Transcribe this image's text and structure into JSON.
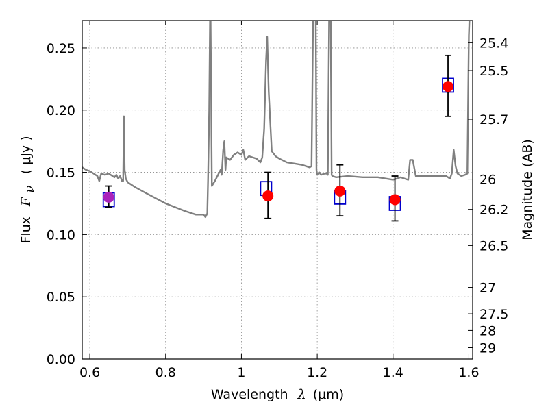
{
  "chart_data": {
    "type": "scatter",
    "xlabel": "Wavelength",
    "xlabel_symbol": "λ",
    "xlabel_unit": "(μm)",
    "ylabel": "Flux",
    "ylabel_symbol": "F",
    "ylabel_sub": "ν",
    "ylabel_unit": "( μJy )",
    "y2label": "Magnitude (AB)",
    "xlim": [
      0.58,
      1.61
    ],
    "ylim": [
      0.0,
      0.272
    ],
    "grid": true,
    "x_ticks": [
      {
        "value": 0.6,
        "label": "0.6"
      },
      {
        "value": 0.8,
        "label": "0.8"
      },
      {
        "value": 1.0,
        "label": "1"
      },
      {
        "value": 1.2,
        "label": "1.2"
      },
      {
        "value": 1.4,
        "label": "1.4"
      },
      {
        "value": 1.6,
        "label": "1.6"
      }
    ],
    "y_ticks": [
      {
        "value": 0.0,
        "label": "0.00"
      },
      {
        "value": 0.05,
        "label": "0.05"
      },
      {
        "value": 0.1,
        "label": "0.10"
      },
      {
        "value": 0.15,
        "label": "0.15"
      },
      {
        "value": 0.2,
        "label": "0.20"
      },
      {
        "value": 0.25,
        "label": "0.25"
      }
    ],
    "y2_ticks": [
      {
        "flux": 0.2542,
        "label": "25.4"
      },
      {
        "flux": 0.2318,
        "label": "25.5"
      },
      {
        "flux": 0.1927,
        "label": "25.7"
      },
      {
        "flux": 0.1445,
        "label": "26"
      },
      {
        "flux": 0.1202,
        "label": "26.2"
      },
      {
        "flux": 0.0912,
        "label": "26.5"
      },
      {
        "flux": 0.0575,
        "label": "27"
      },
      {
        "flux": 0.0363,
        "label": "27.5"
      },
      {
        "flux": 0.0229,
        "label": "28"
      },
      {
        "flux": 0.0091,
        "label": "29"
      }
    ],
    "series": [
      {
        "kind": "model-spectrum",
        "color": "#808080",
        "x": [
          0.58,
          0.59,
          0.6,
          0.61,
          0.62,
          0.625,
          0.63,
          0.64,
          0.65,
          0.66,
          0.665,
          0.67,
          0.675,
          0.68,
          0.685,
          0.688,
          0.69,
          0.692,
          0.695,
          0.7,
          0.72,
          0.75,
          0.8,
          0.85,
          0.88,
          0.9,
          0.905,
          0.91,
          0.912,
          0.915,
          0.918,
          0.922,
          0.926,
          0.93,
          0.94,
          0.945,
          0.948,
          0.952,
          0.955,
          0.958,
          0.96,
          0.97,
          0.98,
          0.99,
          1.0,
          1.005,
          1.01,
          1.02,
          1.04,
          1.05,
          1.055,
          1.06,
          1.065,
          1.068,
          1.072,
          1.08,
          1.09,
          1.1,
          1.12,
          1.14,
          1.16,
          1.18,
          1.185,
          1.19,
          1.195,
          1.198,
          1.2,
          1.202,
          1.205,
          1.21,
          1.22,
          1.225,
          1.228,
          1.232,
          1.235,
          1.238,
          1.24,
          1.25,
          1.28,
          1.32,
          1.36,
          1.4,
          1.42,
          1.44,
          1.445,
          1.452,
          1.46,
          1.5,
          1.54,
          1.55,
          1.555,
          1.56,
          1.565,
          1.57,
          1.58,
          1.59,
          1.596,
          1.6,
          1.605,
          1.61
        ],
        "y": [
          0.154,
          0.152,
          0.151,
          0.149,
          0.147,
          0.143,
          0.149,
          0.148,
          0.149,
          0.147,
          0.146,
          0.148,
          0.145,
          0.147,
          0.143,
          0.143,
          0.195,
          0.152,
          0.145,
          0.142,
          0.138,
          0.133,
          0.125,
          0.119,
          0.116,
          0.116,
          0.114,
          0.117,
          0.145,
          0.2,
          0.3,
          0.139,
          0.141,
          0.143,
          0.149,
          0.152,
          0.148,
          0.168,
          0.175,
          0.152,
          0.162,
          0.16,
          0.164,
          0.166,
          0.164,
          0.168,
          0.16,
          0.163,
          0.161,
          0.158,
          0.162,
          0.185,
          0.24,
          0.259,
          0.215,
          0.167,
          0.163,
          0.161,
          0.158,
          0.157,
          0.156,
          0.154,
          0.155,
          0.3,
          0.35,
          0.152,
          0.148,
          0.149,
          0.15,
          0.148,
          0.149,
          0.149,
          0.148,
          0.3,
          0.3,
          0.148,
          0.147,
          0.146,
          0.147,
          0.146,
          0.146,
          0.144,
          0.146,
          0.144,
          0.16,
          0.16,
          0.147,
          0.147,
          0.147,
          0.145,
          0.149,
          0.168,
          0.155,
          0.149,
          0.147,
          0.148,
          0.149,
          0.26,
          0.3,
          0.3
        ]
      },
      {
        "kind": "model-photometry",
        "marker": "open-square",
        "color": "#0000cc",
        "x": [
          0.65,
          1.065,
          1.26,
          1.405,
          1.545
        ],
        "y": [
          0.128,
          0.137,
          0.13,
          0.125,
          0.22
        ]
      },
      {
        "kind": "observed",
        "marker": "filled-circle",
        "color": "#ff0000",
        "x": [
          0.65,
          1.07,
          1.26,
          1.405,
          1.545
        ],
        "y": [
          0.13,
          0.131,
          0.135,
          0.128,
          0.219
        ],
        "yerr_low": [
          0.122,
          0.113,
          0.115,
          0.111,
          0.195
        ],
        "yerr_high": [
          0.139,
          0.15,
          0.156,
          0.147,
          0.244
        ],
        "point_colors": [
          "#aa22bb",
          "#ff0000",
          "#ff0000",
          "#ff0000",
          "#ff0000"
        ],
        "errorbar_color": "#000000"
      }
    ]
  }
}
